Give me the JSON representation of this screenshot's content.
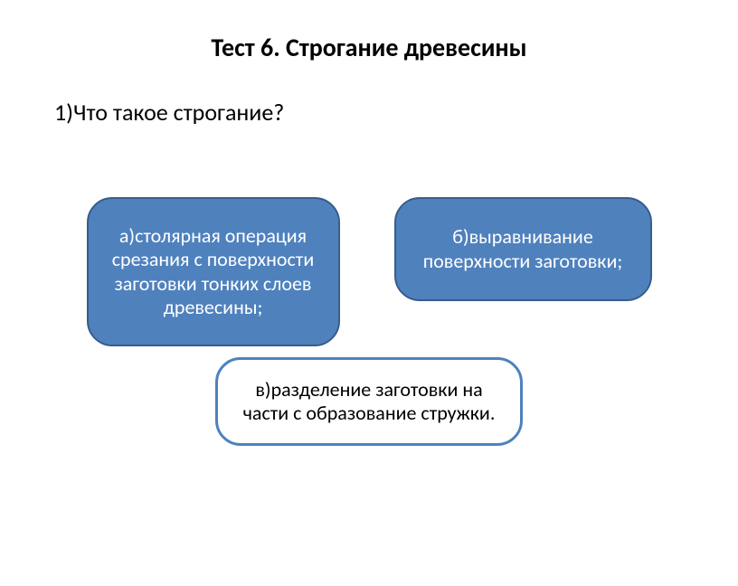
{
  "title": "Тест 6. Строгание древесины",
  "question": "1)Что такое строгание?",
  "options": {
    "a": "а)столярная операция срезания с поверхности заготовки тонких слоев древесины;",
    "b": "б)выравнивание поверхности заготовки;",
    "c": "в)разделение заготовки на части с образование стружки."
  },
  "style": {
    "title_fontsize": 28,
    "question_fontsize": 26,
    "option_fontsize": 22,
    "option_fill_color": "#4f81bd",
    "option_border_color": "#385d8a",
    "option_text_color": "#ffffff",
    "option_c_bg": "#ffffff",
    "option_c_border": "#4f81bd",
    "option_c_text": "#000000",
    "border_radius": 28,
    "background_color": "#ffffff"
  }
}
